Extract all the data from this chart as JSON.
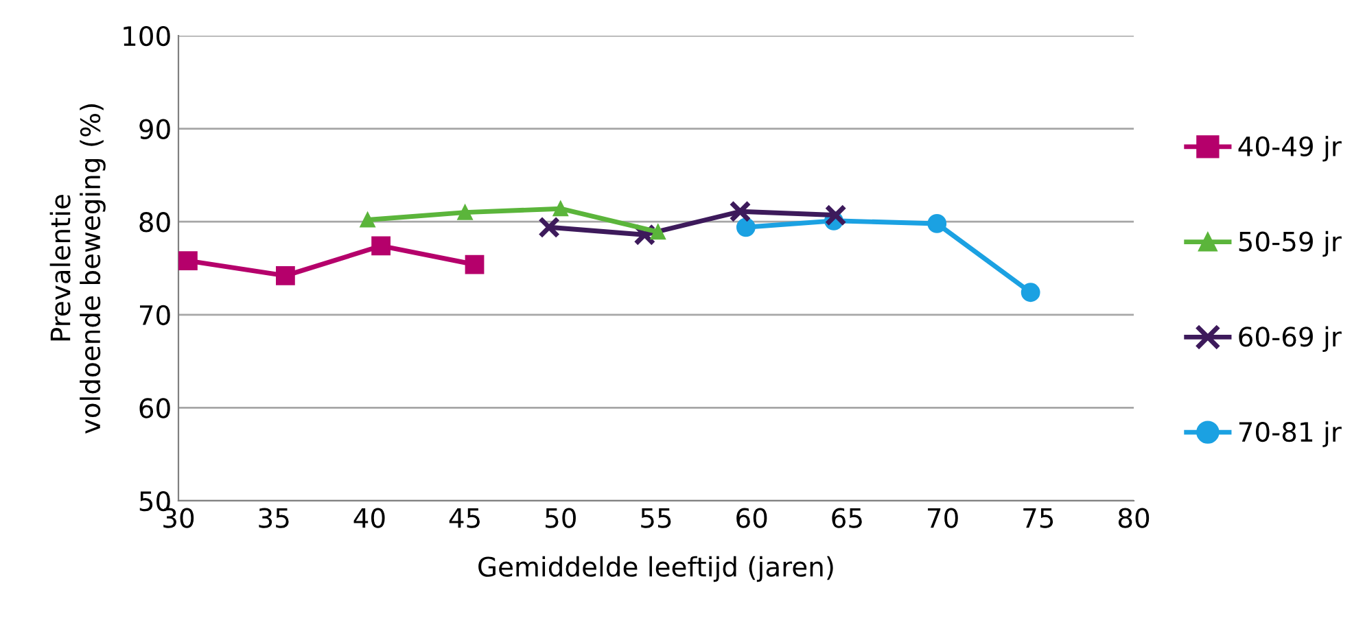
{
  "chart_data": {
    "type": "line",
    "xlabel": "Gemiddelde leeftijd (jaren)",
    "ylabel": "Prevalentie\nvoldoende beweging (%)",
    "xlim": [
      30,
      80
    ],
    "xticks": [
      30,
      35,
      40,
      45,
      50,
      55,
      60,
      65,
      70,
      75,
      80
    ],
    "ylim": [
      50,
      100
    ],
    "yticks": [
      50,
      60,
      70,
      80,
      90,
      100
    ],
    "grid": "y",
    "legend": "right",
    "series": [
      {
        "name": "40-49 jr",
        "color": "#b5006b",
        "marker": "square",
        "x": [
          30.5,
          35.6,
          40.6,
          45.5
        ],
        "values": [
          75.8,
          74.2,
          77.4,
          75.4
        ]
      },
      {
        "name": "50-59 jr",
        "color": "#5bb53b",
        "marker": "triangle",
        "x": [
          39.9,
          45.0,
          50.0,
          55.1
        ],
        "values": [
          80.2,
          81.0,
          81.4,
          78.9
        ]
      },
      {
        "name": "60-69 jr",
        "color": "#3d1a5b",
        "marker": "cross",
        "x": [
          49.4,
          54.4,
          59.4,
          64.4
        ],
        "values": [
          79.4,
          78.6,
          81.1,
          80.7
        ]
      },
      {
        "name": "70-81 jr",
        "color": "#1ba1e2",
        "marker": "circle",
        "x": [
          59.7,
          64.3,
          69.7,
          74.6
        ],
        "values": [
          79.4,
          80.1,
          79.8,
          72.4
        ]
      }
    ]
  }
}
